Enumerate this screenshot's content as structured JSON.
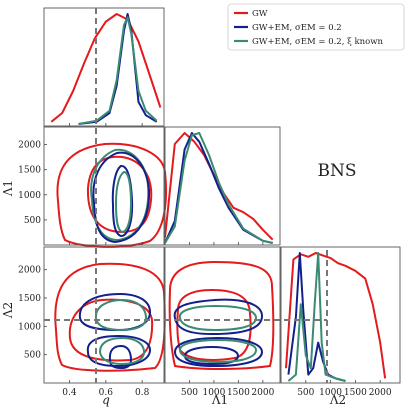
{
  "chart_data": {
    "type": "corner",
    "label": "BNS",
    "parameters": [
      {
        "name": "q",
        "ticks": [
          0.4,
          0.6,
          0.8
        ],
        "range": [
          0.26,
          0.92
        ],
        "injected": 0.56
      },
      {
        "name": "Λ1",
        "ticks": [
          500,
          1000,
          1500,
          2000
        ],
        "range": [
          0,
          2350
        ]
      },
      {
        "name": "Λ2",
        "ticks": [
          500,
          1000,
          1500,
          2000
        ],
        "range": [
          0,
          2400
        ],
        "injected": 1000
      }
    ],
    "tick_labels": {
      "q": [
        "0.4",
        "0.6",
        "0.8"
      ],
      "lambda1": [
        "500",
        "1000",
        "1500",
        "2000"
      ],
      "lambda2": [
        "500",
        "1000",
        "1500",
        "2000"
      ]
    },
    "axis_labels": {
      "q": "q",
      "lambda1": "Λ1",
      "lambda2": "Λ2"
    },
    "legend": {
      "placement": "top-right",
      "entries": [
        {
          "label": "GW",
          "color": "#e41a1c"
        },
        {
          "label": "GW+EM, σEM = 0.2",
          "color": "#13208c"
        },
        {
          "label": "GW+EM, σEM = 0.2, ξ known",
          "color": "#3a8a74"
        }
      ]
    },
    "series": [
      {
        "name": "GW",
        "color": "#e41a1c",
        "marginals": {
          "q": {
            "x": [
              0.3,
              0.36,
              0.42,
              0.48,
              0.54,
              0.6,
              0.66,
              0.72,
              0.78,
              0.84,
              0.9
            ],
            "y": [
              0.02,
              0.1,
              0.3,
              0.55,
              0.78,
              0.93,
              1.0,
              0.95,
              0.75,
              0.45,
              0.15
            ]
          },
          "lambda1": {
            "x": [
              0,
              200,
              400,
              600,
              800,
              1000,
              1200,
              1400,
              1600,
              1800,
              2000,
              2200
            ],
            "y": [
              0.05,
              0.9,
              1.0,
              0.92,
              0.8,
              0.62,
              0.45,
              0.32,
              0.28,
              0.22,
              0.12,
              0.03
            ]
          },
          "lambda2": {
            "x": [
              100,
              250,
              400,
              550,
              700,
              850,
              1000,
              1150,
              1300,
              1500,
              1700,
              1850,
              2000,
              2100
            ],
            "y": [
              0.1,
              0.95,
              0.99,
              0.97,
              1.0,
              0.98,
              0.96,
              0.92,
              0.9,
              0.86,
              0.8,
              0.6,
              0.3,
              0.02
            ]
          }
        }
      },
      {
        "name": "GW+EM, σEM = 0.2",
        "color": "#13208c",
        "marginals": {
          "q": {
            "x": [
              0.45,
              0.55,
              0.62,
              0.66,
              0.7,
              0.72,
              0.74,
              0.78,
              0.82,
              0.88
            ],
            "y": [
              0.0,
              0.02,
              0.1,
              0.35,
              0.85,
              1.0,
              0.85,
              0.2,
              0.08,
              0.02
            ]
          },
          "lambda1": {
            "x": [
              0,
              200,
              400,
              550,
              700,
              900,
              1100,
              1300,
              1600,
              2000,
              2200
            ],
            "y": [
              0.0,
              0.2,
              0.85,
              1.0,
              0.92,
              0.72,
              0.5,
              0.32,
              0.12,
              0.02,
              0.0
            ]
          },
          "lambda2": {
            "x": [
              150,
              300,
              380,
              450,
              550,
              650,
              750,
              850,
              950,
              1100,
              1300
            ],
            "y": [
              0.05,
              0.5,
              1.0,
              0.55,
              0.05,
              0.1,
              0.3,
              0.15,
              0.05,
              0.02,
              0.0
            ]
          }
        }
      },
      {
        "name": "GW+EM, σEM = 0.2, ξ known",
        "color": "#3a8a74",
        "marginals": {
          "q": {
            "x": [
              0.45,
              0.55,
              0.62,
              0.66,
              0.7,
              0.72,
              0.74,
              0.78,
              0.82,
              0.88
            ],
            "y": [
              0.0,
              0.03,
              0.12,
              0.4,
              0.9,
              0.97,
              0.82,
              0.3,
              0.12,
              0.03
            ]
          },
          "lambda1": {
            "x": [
              0,
              200,
              400,
              550,
              700,
              900,
              1100,
              1300,
              1600,
              2000,
              2200
            ],
            "y": [
              0.0,
              0.15,
              0.75,
              0.98,
              1.0,
              0.8,
              0.55,
              0.35,
              0.13,
              0.02,
              0.0
            ]
          },
          "lambda2": {
            "x": [
              150,
              300,
              400,
              500,
              600,
              680,
              750,
              820,
              900,
              1100,
              1300
            ],
            "y": [
              0.0,
              0.05,
              0.6,
              0.2,
              0.1,
              0.6,
              1.0,
              0.3,
              0.05,
              0.02,
              0.0
            ]
          }
        }
      }
    ]
  }
}
